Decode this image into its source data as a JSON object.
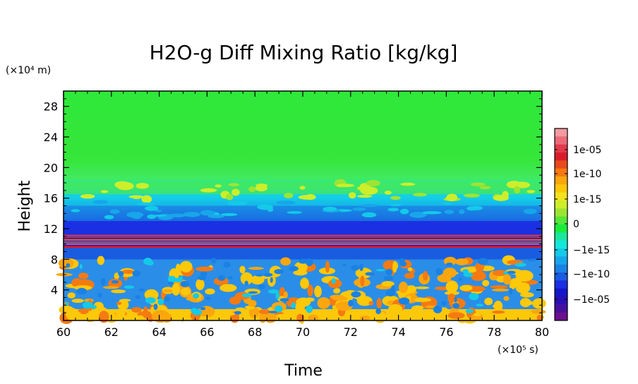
{
  "chart_data": {
    "type": "heatmap",
    "title": "H2O-g Diff Mixing Ratio [kg/kg]",
    "xlabel": "Time",
    "ylabel": "Height",
    "x_unit_label": "(×10⁵ s)",
    "y_unit_label": "(×10⁴ m)",
    "xlim": [
      60,
      80
    ],
    "ylim": [
      0,
      30
    ],
    "x_ticks": [
      "60",
      "62",
      "64",
      "66",
      "68",
      "70",
      "72",
      "74",
      "76",
      "78",
      "80"
    ],
    "y_ticks": [
      "4",
      "8",
      "12",
      "16",
      "20",
      "24",
      "28"
    ],
    "colorbar": {
      "levels_top_to_bottom": [
        "#f49aa0",
        "#ec6b78",
        "#e23a4c",
        "#d81e2a",
        "#e84a1e",
        "#f57a12",
        "#fba60e",
        "#fcc80a",
        "#f4e21c",
        "#cdee2a",
        "#9ee432",
        "#54e63a",
        "#18ec3c",
        "#1ae6a0",
        "#14e8d8",
        "#14cae8",
        "#18a6ea",
        "#1a82e4",
        "#1a5ce0",
        "#1a30e2",
        "#1416c8",
        "#2a10b4",
        "#46109e",
        "#6a108c"
      ],
      "tick_labels": [
        "1e-05",
        "1e-10",
        "1e-15",
        "0",
        "−1e-15",
        "−1e-10",
        "−1e-05"
      ]
    },
    "bands": [
      {
        "from": 0,
        "to": 1.5,
        "field": "orange-yellow",
        "color": "#fcc80a"
      },
      {
        "from": 1.5,
        "to": 8,
        "field": "mixed yellow/orange and blue",
        "color": "#2a8ee8"
      },
      {
        "from": 8,
        "to": 9.5,
        "field": "blue",
        "color": "#1a5ce0"
      },
      {
        "from": 9.5,
        "to": 11.2,
        "field": "red/blue stripes",
        "color": "#d81e2a"
      },
      {
        "from": 11.2,
        "to": 13,
        "field": "blue",
        "color": "#1a30e2"
      },
      {
        "from": 13,
        "to": 15,
        "field": "blue",
        "color": "#1a82e4"
      },
      {
        "from": 15,
        "to": 16.5,
        "field": "cyan",
        "color": "#14cae8"
      },
      {
        "from": 16.5,
        "to": 18,
        "field": "light green/yellow patches",
        "color": "#54e63a"
      },
      {
        "from": 18,
        "to": 30,
        "field": "green",
        "color": "#2ee83a"
      }
    ],
    "grid": false
  }
}
